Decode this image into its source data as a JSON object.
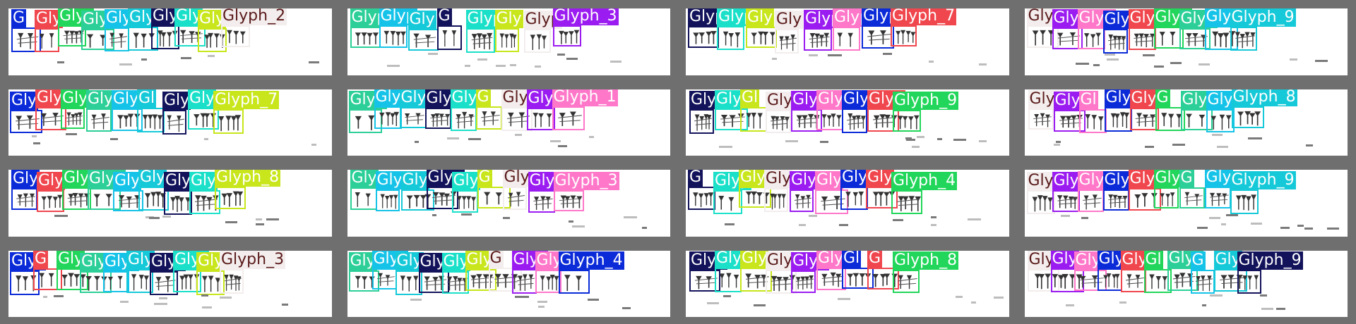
{
  "palette": [
    "#0b2bd8",
    "#16c9d8",
    "#9b1cf0",
    "#2ccf97",
    "#c8e61b",
    "#f0464d",
    "#13135b",
    "#ff77c9",
    "#16c3e8",
    "#f3eded",
    "#21d65a",
    "#1be0c9"
  ],
  "panels": [
    {
      "labels": [
        "G",
        "Gly",
        "Glyph",
        "Gly",
        "Glyph",
        "Gly",
        "Glyph",
        "Gly",
        "Gly",
        "Glyph_2"
      ]
    },
    {
      "labels": [
        "Glyp",
        "Glyp",
        "Gly",
        "G",
        "Glyp",
        "Gly",
        "Glyp",
        "Glyph_3"
      ]
    },
    {
      "labels": [
        "Glyp",
        "Glyp",
        "Gly",
        "Gly",
        "Glyp",
        "Glyp",
        "Glyp",
        "Glyph_7"
      ]
    },
    {
      "labels": [
        "Gly",
        "Gly",
        "Glyp",
        "Gly",
        "Gly",
        "Glyp",
        "Glyp",
        "Glyp",
        "Glyph_9"
      ]
    },
    {
      "labels": [
        "Gly",
        "Glyp",
        "Gly",
        "Gly",
        "Glyph",
        "Gl",
        "Gly",
        "Gly",
        "Glyph_7"
      ]
    },
    {
      "labels": [
        "Glyp",
        "Glyp",
        "Gly",
        "Gly",
        "Glyp",
        "G",
        "Glyp",
        "Gly",
        "Glyph_1"
      ]
    },
    {
      "labels": [
        "Gly",
        "Glyp",
        "Gl",
        "Glyp",
        "Gly",
        "Gly",
        "Gly",
        "Glyp",
        "Glyph_9"
      ]
    },
    {
      "labels": [
        "Glyp",
        "Glyp",
        "Gl",
        "Gly",
        "Gly",
        "G",
        "Gly",
        "Gly",
        "Glyph_8"
      ]
    },
    {
      "labels": [
        "Gly",
        "Gly",
        "Gly",
        "Glyp",
        "Gly",
        "Gly",
        "Glyp",
        "Gly",
        "Glyph_8"
      ]
    },
    {
      "labels": [
        "Gly",
        "Glyp",
        "Gly",
        "Glyp",
        "Gly",
        "G",
        "Gly",
        "Glyp",
        "Glyph_3"
      ]
    },
    {
      "labels": [
        "G",
        "Glyp",
        "Glyp",
        "Gly",
        "Gly",
        "Gly",
        "Glyp",
        "Gly",
        "Glyph_4"
      ]
    },
    {
      "labels": [
        "Gly",
        "Glyp",
        "Gly",
        "Gly",
        "Glyp",
        "Gly",
        "G",
        "Gly",
        "Glyph_9"
      ]
    },
    {
      "labels": [
        "Glyp",
        "G",
        "Gly",
        "Glyp",
        "Glyp",
        "Gly",
        "Glyp",
        "Glyp",
        "Gly",
        "Glyph_3"
      ]
    },
    {
      "labels": [
        "Gly",
        "Glyp",
        "Gly",
        "Glyp",
        "Gly",
        "Gly",
        "G",
        "Glyp",
        "Gly",
        "Glyph_4"
      ]
    },
    {
      "labels": [
        "Glyp",
        "Gly",
        "Gly",
        "Gly",
        "Glyp",
        "Gly",
        "Gl",
        "G",
        "Glyph_8"
      ]
    },
    {
      "labels": [
        "Glyp",
        "Gly",
        "Gly",
        "Glyp",
        "Gly",
        "Gl",
        "Glyp",
        "G",
        "Gly",
        "Glyph_9"
      ]
    }
  ]
}
